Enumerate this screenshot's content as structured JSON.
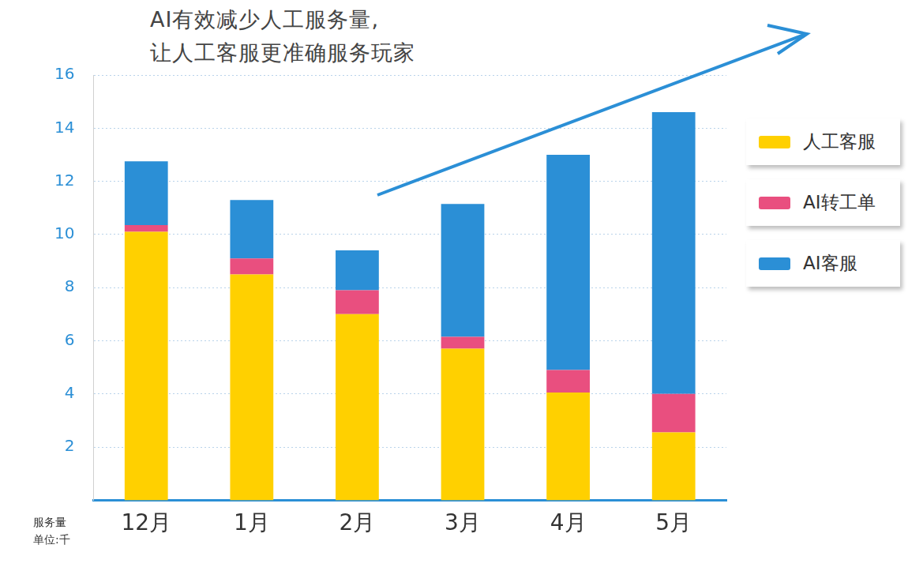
{
  "chart_data": {
    "type": "bar",
    "title": [
      "AI有效减少人工服务量,",
      "让人工客服更准确服务玩家"
    ],
    "y_label": [
      "服务量",
      "单位:千"
    ],
    "categories": [
      "12月",
      "1月",
      "2月",
      "3月",
      "4月",
      "5月"
    ],
    "series": [
      {
        "name": "人工客服",
        "color": "#FFD000",
        "values": [
          10.1,
          8.5,
          7.0,
          5.7,
          4.05,
          2.55
        ]
      },
      {
        "name": "AI转工单",
        "color": "#E94F7F",
        "values": [
          0.25,
          0.6,
          0.9,
          0.45,
          0.85,
          1.45
        ]
      },
      {
        "name": "AI客服",
        "color": "#2B8FD6",
        "values": [
          2.4,
          2.2,
          1.5,
          5.0,
          8.1,
          10.6
        ]
      }
    ],
    "stacked": true,
    "grid": true,
    "legend": "right",
    "ylim": [
      0,
      16
    ],
    "yticks": [
      2,
      4,
      6,
      8,
      10,
      12,
      14,
      16
    ]
  }
}
